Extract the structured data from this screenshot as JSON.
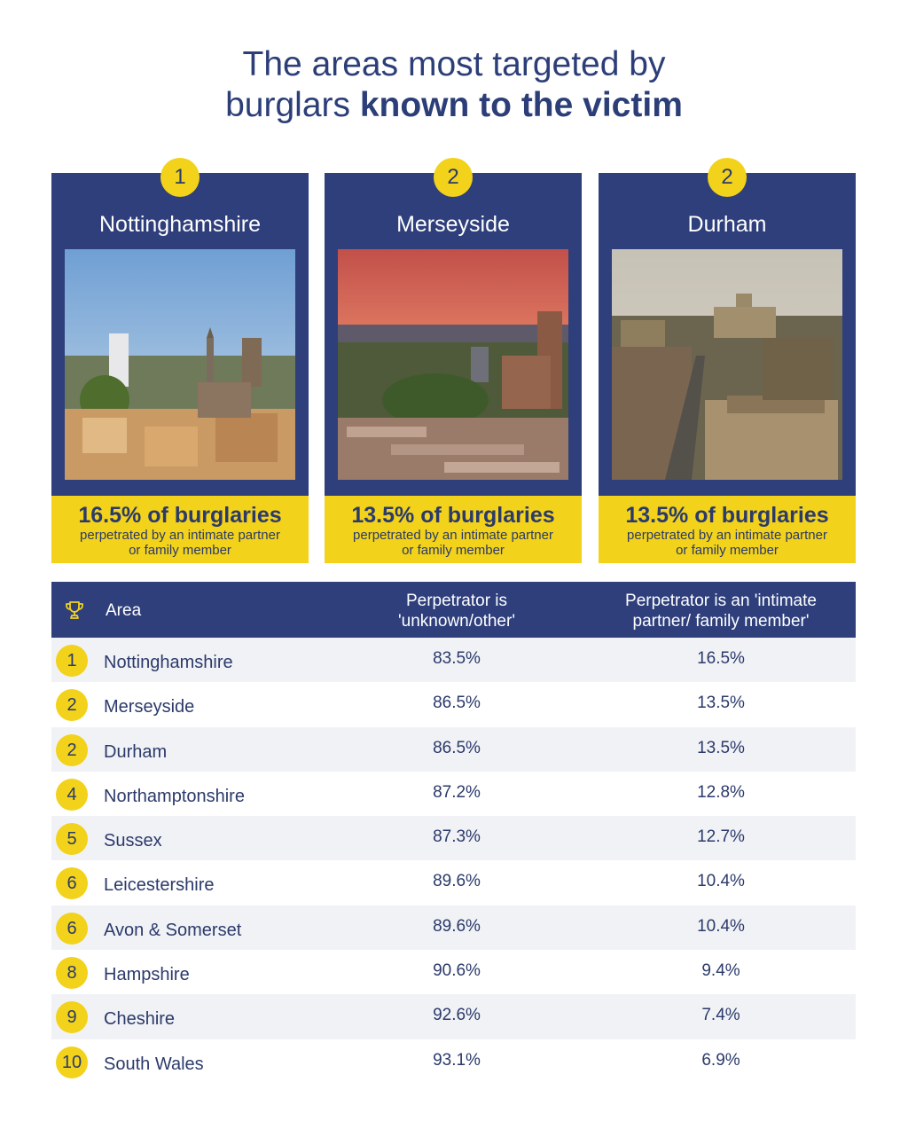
{
  "title": {
    "line1": "The areas most targeted by",
    "line2_normal": "burglars ",
    "line2_bold": "known to the victim"
  },
  "cards": [
    {
      "rank": "1",
      "name": "Nottinghamshire",
      "stat": "16.5% of burglaries",
      "caption1": "perpetrated by an intimate partner",
      "caption2": "or family member"
    },
    {
      "rank": "2",
      "name": "Merseyside",
      "stat": "13.5% of burglaries",
      "caption1": "perpetrated by an intimate partner",
      "caption2": "or family member"
    },
    {
      "rank": "2",
      "name": "Durham",
      "stat": "13.5% of burglaries",
      "caption1": "perpetrated by an intimate partner",
      "caption2": "or family member"
    }
  ],
  "table": {
    "header": {
      "area": "Area",
      "col1_line1": "Perpetrator is",
      "col1_line2": "'unknown/other'",
      "col2_line1": "Perpetrator is an 'intimate",
      "col2_line2": "partner/ family member'"
    }
  },
  "colors": {
    "navy": "#2e3f7c",
    "yellow": "#f2d21a",
    "text": "#2b3a6b",
    "stripe": "#f1f2f5"
  },
  "chart_data": {
    "type": "table",
    "columns": [
      "Area",
      "Perpetrator is 'unknown/other'",
      "Perpetrator is an 'intimate partner/ family member'"
    ],
    "rows": [
      {
        "rank": "1",
        "area": "Nottinghamshire",
        "unknown": "83.5%",
        "intimate": "16.5%"
      },
      {
        "rank": "2",
        "area": "Merseyside",
        "unknown": "86.5%",
        "intimate": "13.5%"
      },
      {
        "rank": "2",
        "area": "Durham",
        "unknown": "86.5%",
        "intimate": "13.5%"
      },
      {
        "rank": "4",
        "area": "Northamptonshire",
        "unknown": "87.2%",
        "intimate": "12.8%"
      },
      {
        "rank": "5",
        "area": "Sussex",
        "unknown": "87.3%",
        "intimate": "12.7%"
      },
      {
        "rank": "6",
        "area": "Leicestershire",
        "unknown": "89.6%",
        "intimate": "10.4%"
      },
      {
        "rank": "6",
        "area": "Avon & Somerset",
        "unknown": "89.6%",
        "intimate": "10.4%"
      },
      {
        "rank": "8",
        "area": "Hampshire",
        "unknown": "90.6%",
        "intimate": "9.4%"
      },
      {
        "rank": "9",
        "area": "Cheshire",
        "unknown": "92.6%",
        "intimate": "7.4%"
      },
      {
        "rank": "10",
        "area": "South Wales",
        "unknown": "93.1%",
        "intimate": "6.9%"
      }
    ]
  }
}
